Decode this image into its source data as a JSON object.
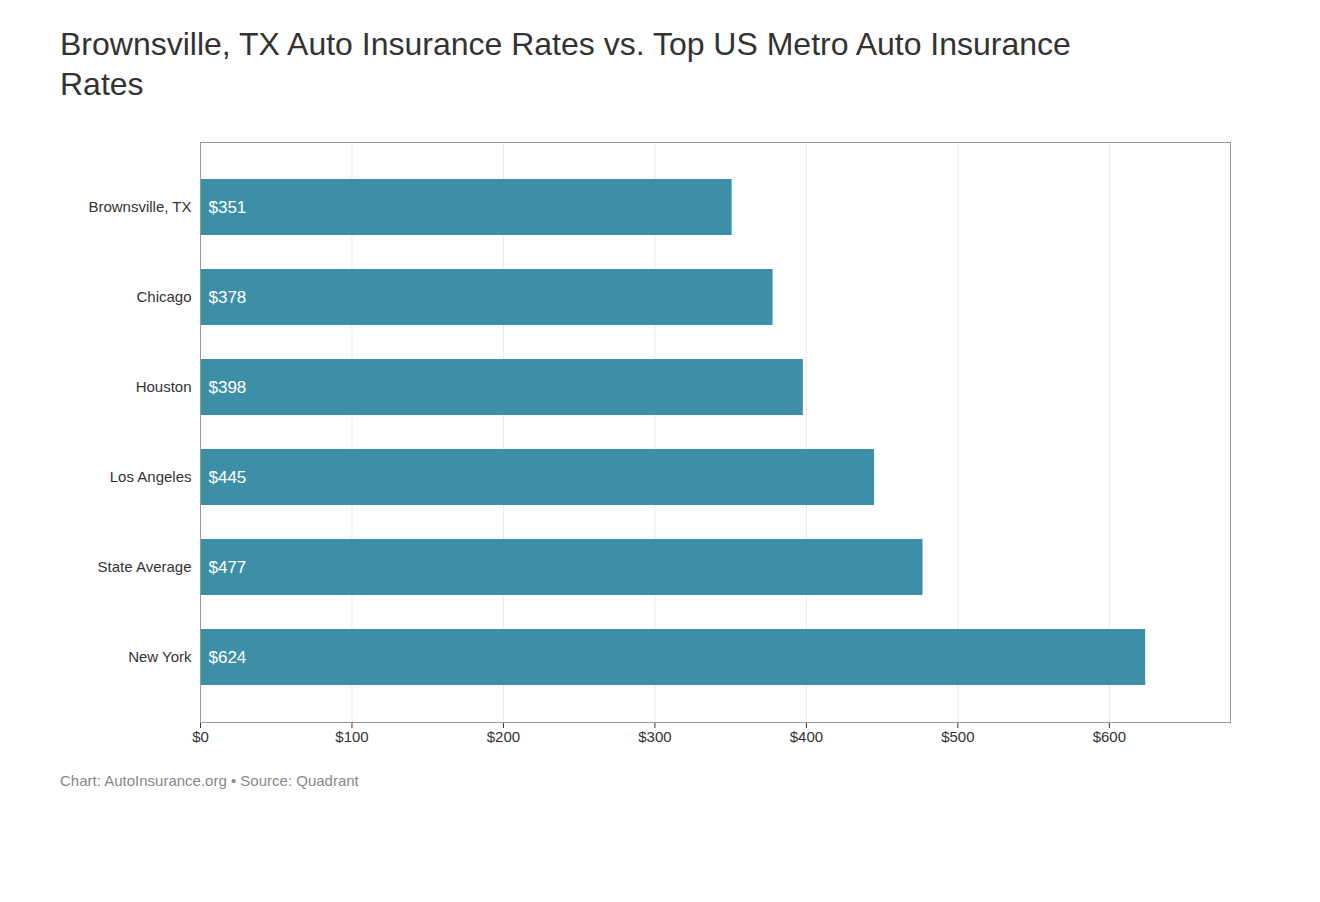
{
  "chart_data": {
    "type": "bar",
    "orientation": "horizontal",
    "title": "Brownsville, TX Auto Insurance Rates vs. Top US Metro Auto Insurance\nRates",
    "caption": "Chart: AutoInsurance.org • Source: Quadrant",
    "categories": [
      "Brownsville, TX",
      "Chicago",
      "Houston",
      "Los Angeles",
      "State Average",
      "New York"
    ],
    "values": [
      351,
      378,
      398,
      445,
      477,
      624
    ],
    "value_labels": [
      "$351",
      "$378",
      "$398",
      "$445",
      "$477",
      "$624"
    ],
    "data_labels": true,
    "color": "#3d8fa8",
    "xlim": [
      0,
      680
    ],
    "xticks": [
      {
        "value": 0,
        "label": "$0"
      },
      {
        "value": 100,
        "label": "$100"
      },
      {
        "value": 200,
        "label": "$200"
      },
      {
        "value": 300,
        "label": "$300"
      },
      {
        "value": 400,
        "label": "$400"
      },
      {
        "value": 500,
        "label": "$500"
      },
      {
        "value": 600,
        "label": "$600"
      }
    ],
    "grid": true
  }
}
